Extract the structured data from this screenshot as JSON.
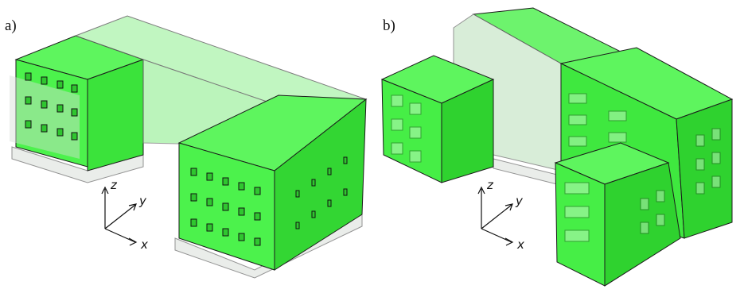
{
  "figure": {
    "panels": [
      {
        "id": "a",
        "label": "a)",
        "axes": {
          "z": "z",
          "y": "y",
          "x": "x"
        }
      },
      {
        "id": "b",
        "label": "b)",
        "axes": {
          "z": "z",
          "y": "y",
          "x": "x"
        }
      }
    ]
  },
  "colors": {
    "facade_green": "#3ef03e",
    "facade_dark": "#1f9e1f",
    "glass": "#cfd8cf",
    "outline": "#1b1b1b"
  },
  "icons": {
    "axis_triad": "axis-triad-icon"
  }
}
